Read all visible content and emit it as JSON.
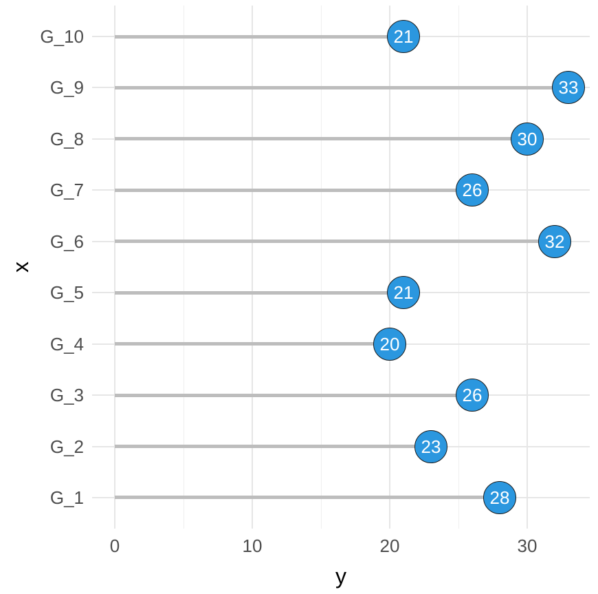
{
  "chart_data": {
    "type": "bar",
    "variant": "horizontal-lollipop",
    "title": "",
    "xlabel": "y",
    "ylabel": "x",
    "categories": [
      "G_10",
      "G_9",
      "G_8",
      "G_7",
      "G_6",
      "G_5",
      "G_4",
      "G_3",
      "G_2",
      "G_1"
    ],
    "values": [
      21,
      33,
      30,
      26,
      32,
      21,
      20,
      26,
      23,
      28
    ],
    "x_ticks": [
      0,
      10,
      20,
      30
    ],
    "x_minor_gridlines": [
      5,
      15,
      25
    ],
    "xlim": [
      -1.65,
      34.55
    ],
    "grid": true,
    "legend": false,
    "point_labels_shown": true,
    "colors": {
      "point_fill": "#2B97DF",
      "point_border": "#1a1a1a",
      "point_label": "#ffffff",
      "stem": "#BDBDBD",
      "grid_major": "#E6E6E6",
      "grid_minor": "#EFEFEF",
      "axis_text": "#4D4D4D",
      "axis_title": "#000000",
      "background": "#ffffff"
    }
  }
}
